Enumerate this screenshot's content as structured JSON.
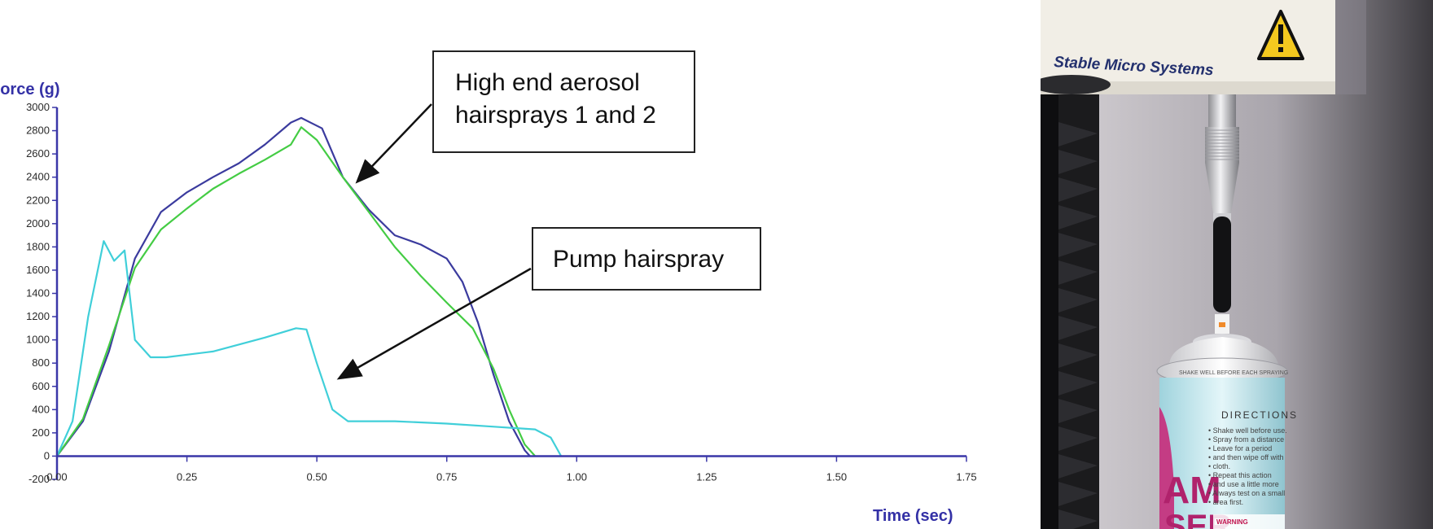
{
  "chart_data": {
    "type": "line",
    "xlabel": "Time (sec)",
    "ylabel": "Force (g)",
    "xlim": [
      0,
      1.75
    ],
    "ylim": [
      -200,
      3000
    ],
    "x_ticks": [
      "0.00",
      "0.25",
      "0.50",
      "0.75",
      "1.00",
      "1.25",
      "1.50",
      "1.75"
    ],
    "y_ticks": [
      "-200",
      "0",
      "200",
      "400",
      "600",
      "800",
      "1000",
      "1200",
      "1400",
      "1600",
      "1800",
      "2000",
      "2200",
      "2400",
      "2600",
      "2800",
      "3000"
    ],
    "series": [
      {
        "color": "#3b3b9e",
        "points": [
          [
            0,
            0
          ],
          [
            0.05,
            300
          ],
          [
            0.1,
            900
          ],
          [
            0.15,
            1700
          ],
          [
            0.2,
            2100
          ],
          [
            0.25,
            2270
          ],
          [
            0.3,
            2400
          ],
          [
            0.35,
            2520
          ],
          [
            0.4,
            2680
          ],
          [
            0.45,
            2870
          ],
          [
            0.47,
            2910
          ],
          [
            0.51,
            2820
          ],
          [
            0.55,
            2400
          ],
          [
            0.6,
            2120
          ],
          [
            0.65,
            1900
          ],
          [
            0.7,
            1820
          ],
          [
            0.75,
            1700
          ],
          [
            0.78,
            1500
          ],
          [
            0.81,
            1150
          ],
          [
            0.84,
            700
          ],
          [
            0.87,
            300
          ],
          [
            0.9,
            50
          ],
          [
            0.91,
            0
          ]
        ]
      },
      {
        "color": "#44cc44",
        "points": [
          [
            0,
            0
          ],
          [
            0.05,
            320
          ],
          [
            0.1,
            950
          ],
          [
            0.15,
            1620
          ],
          [
            0.2,
            1950
          ],
          [
            0.25,
            2130
          ],
          [
            0.3,
            2300
          ],
          [
            0.35,
            2430
          ],
          [
            0.4,
            2550
          ],
          [
            0.45,
            2680
          ],
          [
            0.47,
            2830
          ],
          [
            0.5,
            2720
          ],
          [
            0.55,
            2400
          ],
          [
            0.6,
            2100
          ],
          [
            0.65,
            1800
          ],
          [
            0.7,
            1550
          ],
          [
            0.75,
            1320
          ],
          [
            0.8,
            1100
          ],
          [
            0.84,
            750
          ],
          [
            0.87,
            400
          ],
          [
            0.9,
            100
          ],
          [
            0.92,
            0
          ]
        ]
      },
      {
        "color": "#40cfd9",
        "points": [
          [
            0,
            0
          ],
          [
            0.03,
            300
          ],
          [
            0.06,
            1200
          ],
          [
            0.09,
            1850
          ],
          [
            0.11,
            1680
          ],
          [
            0.13,
            1770
          ],
          [
            0.15,
            1000
          ],
          [
            0.18,
            850
          ],
          [
            0.21,
            850
          ],
          [
            0.3,
            900
          ],
          [
            0.4,
            1020
          ],
          [
            0.46,
            1100
          ],
          [
            0.48,
            1090
          ],
          [
            0.5,
            800
          ],
          [
            0.53,
            400
          ],
          [
            0.56,
            300
          ],
          [
            0.65,
            300
          ],
          [
            0.75,
            280
          ],
          [
            0.85,
            250
          ],
          [
            0.92,
            230
          ],
          [
            0.95,
            160
          ],
          [
            0.96,
            80
          ],
          [
            0.97,
            0
          ]
        ]
      }
    ],
    "annotations": [
      {
        "lines": [
          "High end aerosol",
          "hairsprays 1 and 2"
        ]
      },
      {
        "lines": [
          "Pump hairspray"
        ]
      }
    ]
  },
  "photo": {
    "brand_text": "Stable Micro Systems",
    "can_label_directions": "DIRECTIONS",
    "can_label_shake": "SHAKE WELL BEFORE EACH SPRAYING",
    "can_label_text": [
      "Shake well before use.",
      "Spray from a distance",
      "Leave for a period",
      "and then wipe off with",
      "cloth.",
      "Repeat this action",
      "and use a little more",
      "Always test on a small",
      "area first."
    ],
    "can_label_warning": "WARNING",
    "can_big_letters": "AM",
    "can_big_letters_2": "SER"
  }
}
